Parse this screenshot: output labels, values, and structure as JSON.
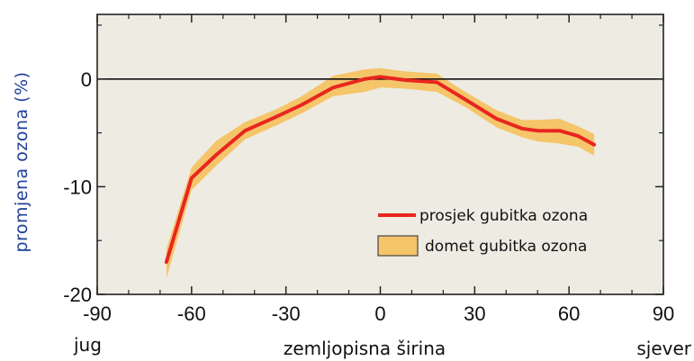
{
  "chart_data": {
    "type": "line",
    "title": "",
    "xlabel": "zemljopisna širina",
    "ylabel": "promjena ozona (%)",
    "x_end_labels": {
      "left": "jug",
      "right": "sjever"
    },
    "xlim": [
      -90,
      90
    ],
    "ylim": [
      -20,
      6
    ],
    "xticks": [
      -90,
      -60,
      -30,
      0,
      30,
      60,
      90
    ],
    "yticks": [
      0,
      -10,
      -20
    ],
    "grid": false,
    "reference_line_y": 0,
    "legend_position": "bottom-right",
    "x": [
      -68,
      -60,
      -52,
      -43,
      -33,
      -25,
      -15,
      -5,
      0,
      8,
      18,
      27,
      37,
      45,
      50,
      57,
      63,
      68
    ],
    "series": [
      {
        "name": "prosjek gubitka ozona",
        "type": "line",
        "color": "#e8261f",
        "values": [
          -17,
          -9.2,
          -7,
          -4.8,
          -3.5,
          -2.4,
          -0.8,
          0,
          0.2,
          -0.1,
          -0.3,
          -1.9,
          -3.7,
          -4.6,
          -4.8,
          -4.8,
          -5.3,
          -6.1
        ]
      },
      {
        "name": "domet gubitka ozona",
        "type": "band",
        "color": "#f5c56a",
        "upper": [
          -15.8,
          -8.2,
          -5.7,
          -4,
          -2.8,
          -1.6,
          0.3,
          0.9,
          1,
          0.7,
          0.5,
          -1.2,
          -2.9,
          -3.8,
          -3.8,
          -3.7,
          -4.4,
          -5.1
        ],
        "lower": [
          -18.5,
          -10.3,
          -8,
          -5.6,
          -4.3,
          -3.2,
          -1.6,
          -1.2,
          -0.8,
          -0.9,
          -1.2,
          -2.6,
          -4.5,
          -5.4,
          -5.8,
          -6,
          -6.3,
          -7.1
        ]
      }
    ]
  }
}
